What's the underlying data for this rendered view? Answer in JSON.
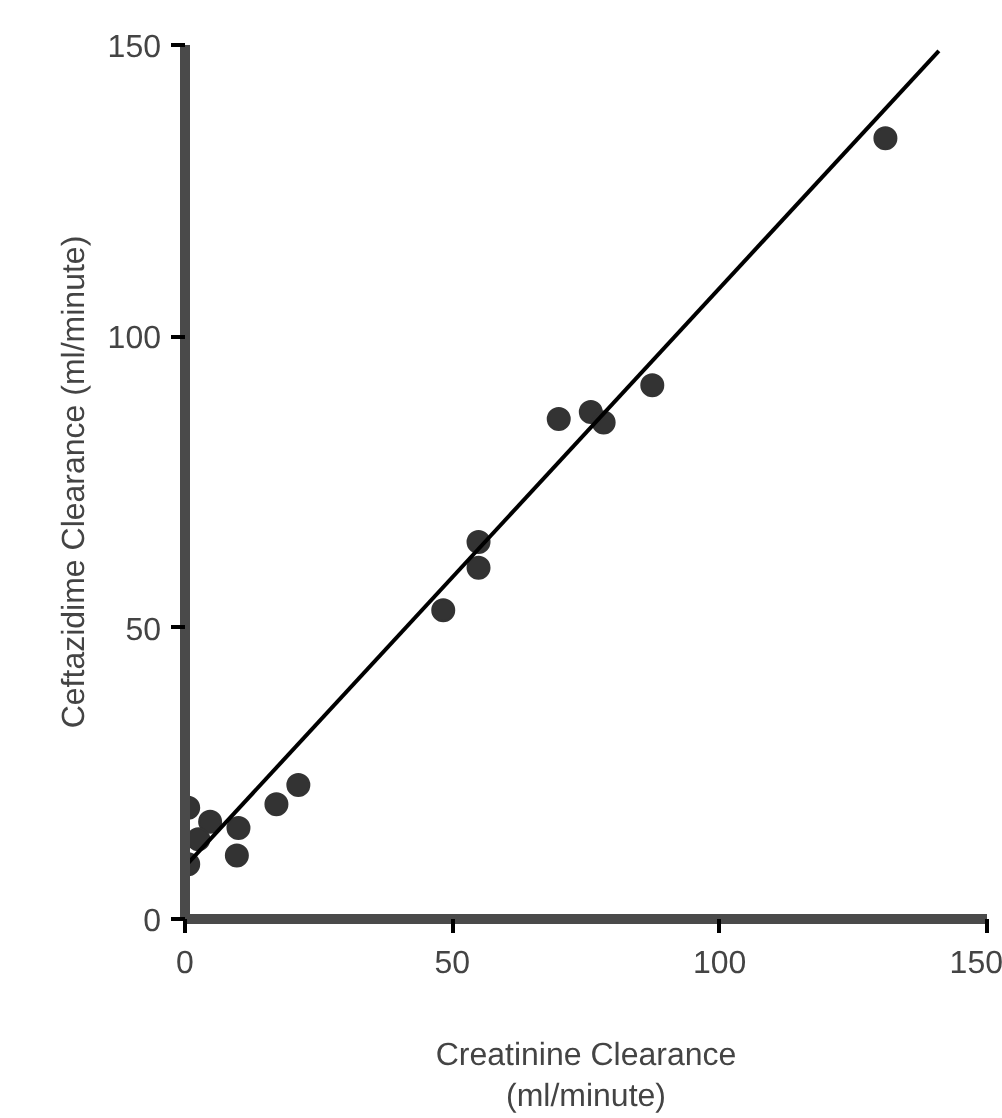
{
  "chart_data": {
    "type": "scatter",
    "xlabel": "Creatinine Clearance\n(ml/minute)",
    "ylabel": "Ceftazidime Clearance (ml/minute)",
    "xlim": [
      0,
      150
    ],
    "ylim": [
      0,
      150
    ],
    "xticks": [
      0,
      50,
      100,
      150
    ],
    "yticks": [
      0,
      50,
      100,
      150
    ],
    "grid": false,
    "series": [
      {
        "marker": "circle",
        "color": "#333333",
        "x": [
          131,
          87.4,
          69.9,
          75.9,
          78.3,
          54.9,
          54.9,
          48.3,
          21.2,
          17.1,
          10.0,
          9.7,
          4.7,
          0.6,
          2.5,
          0.6
        ],
        "values": [
          134,
          91.6,
          85.8,
          87.0,
          85.2,
          64.7,
          60.3,
          53.0,
          23.0,
          19.7,
          15.6,
          10.9,
          16.7,
          19.1,
          13.7,
          9.4
        ]
      },
      {
        "type": "line",
        "color": "#000000",
        "x": [
          0.5,
          141
        ],
        "values": [
          9.5,
          149
        ]
      }
    ]
  }
}
